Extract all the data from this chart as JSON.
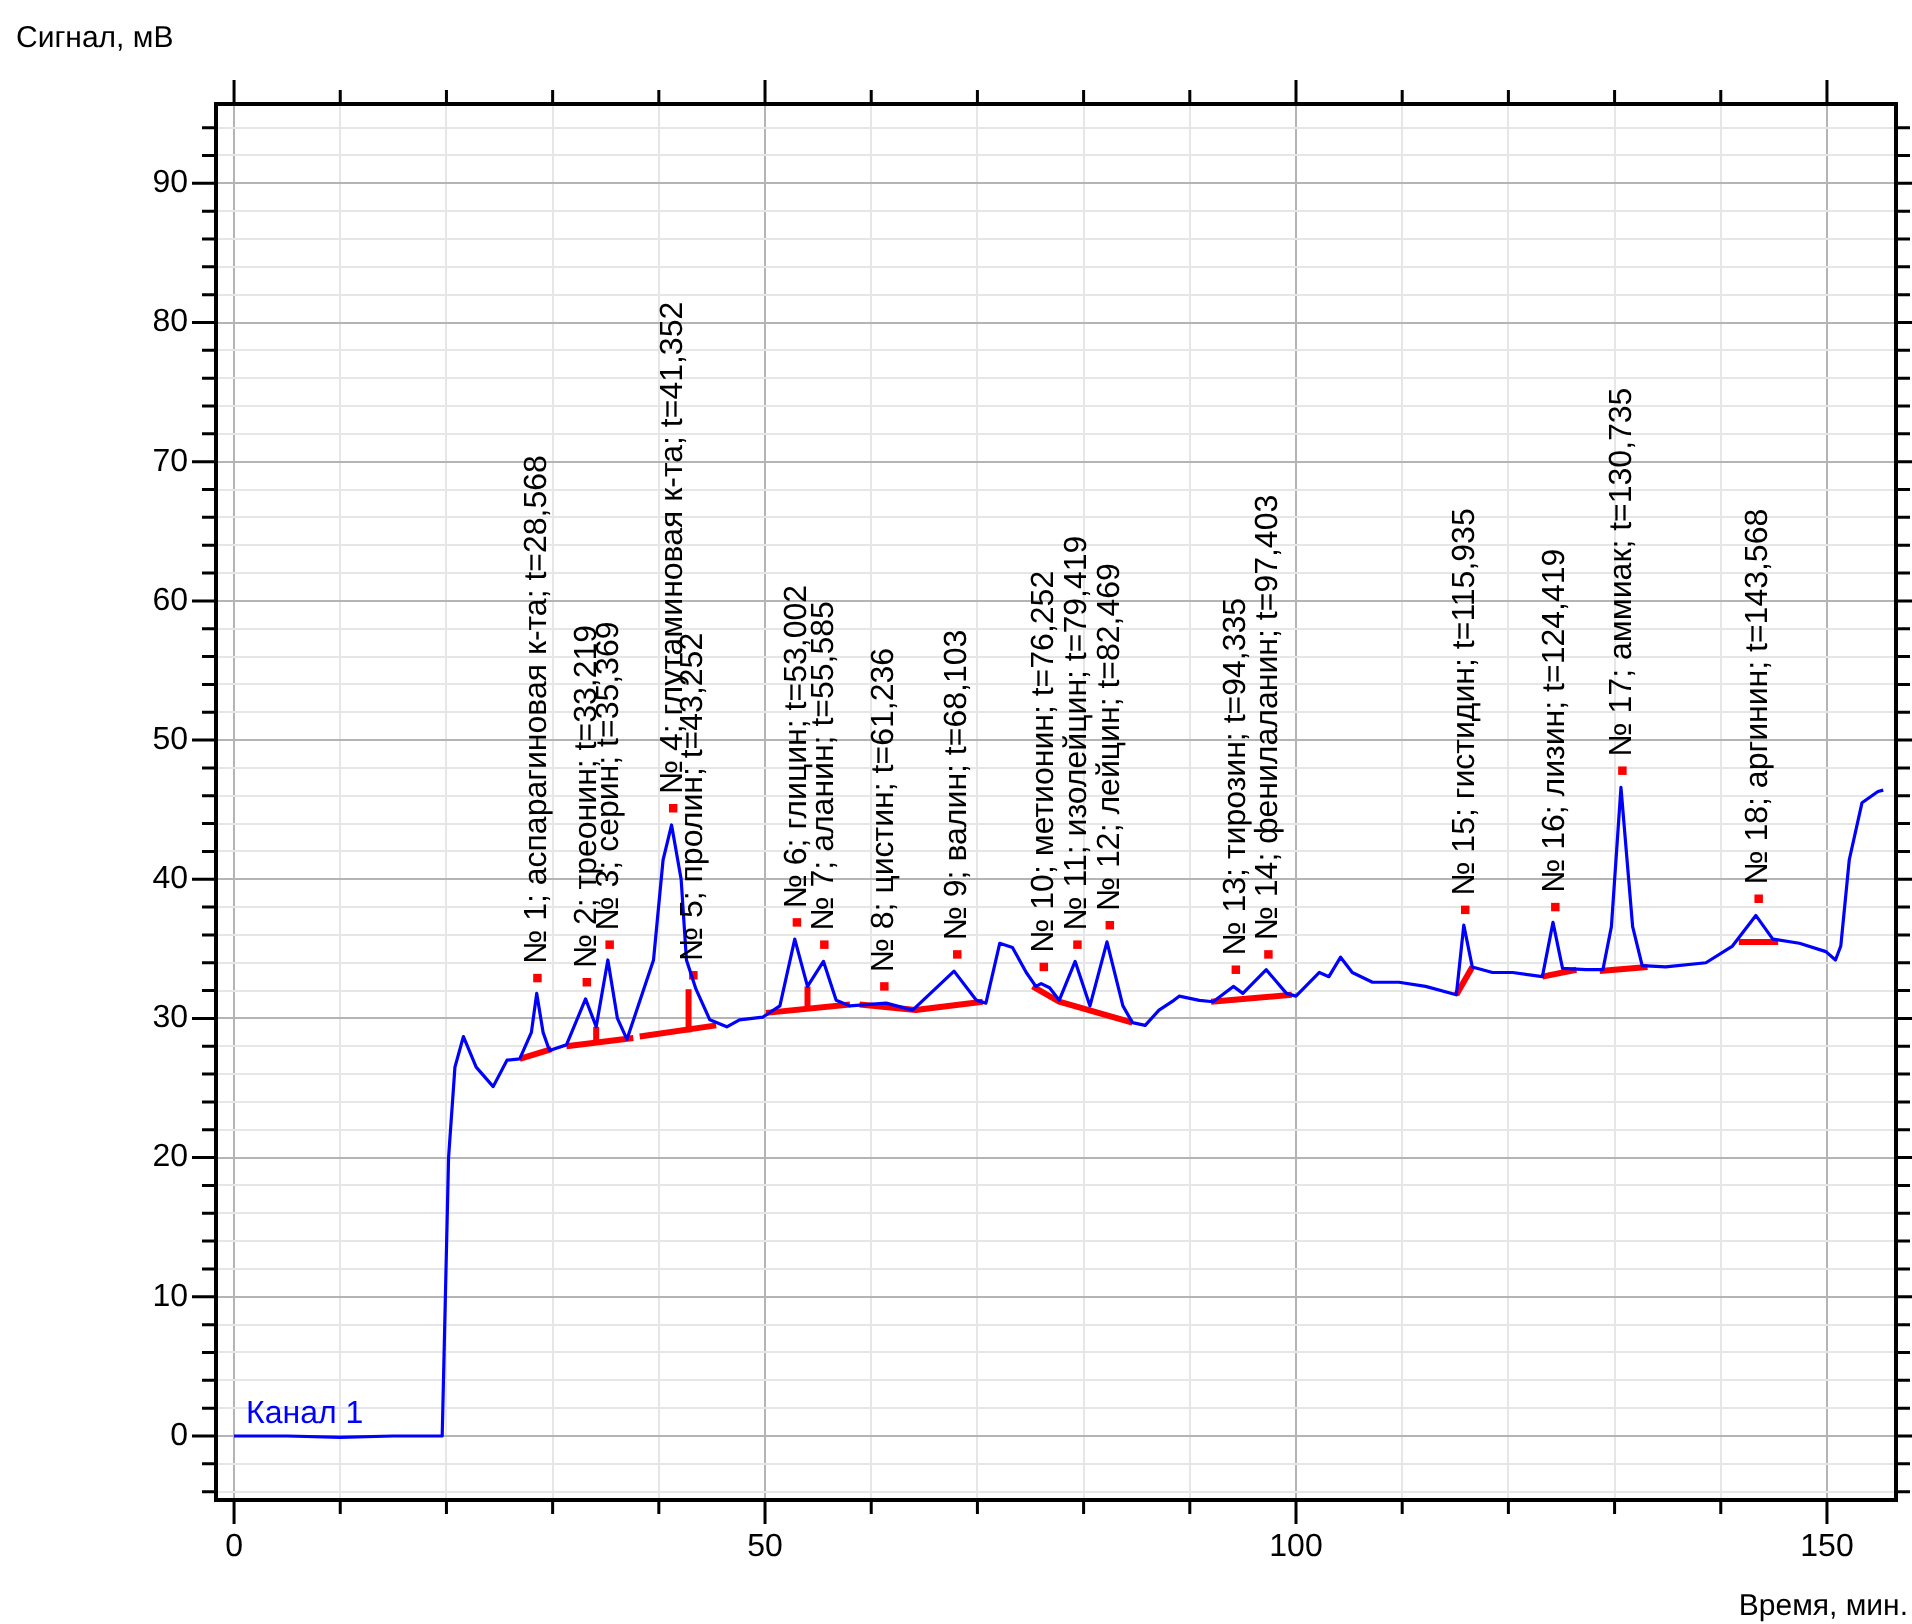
{
  "chart_data": {
    "type": "line",
    "xlabel": "Время, мин.",
    "ylabel": "Сигнал, мВ",
    "xlim": [
      -1.7,
      156.5
    ],
    "ylim": [
      -4.6,
      95.7
    ],
    "xticks": [
      0,
      {
        "value": 10,
        "label": null
      },
      {
        "value": 20,
        "label": null
      },
      {
        "value": 30,
        "label": null
      },
      {
        "value": 40,
        "label": null
      },
      50,
      {
        "value": 60,
        "label": null
      },
      {
        "value": 70,
        "label": null
      },
      {
        "value": 80,
        "label": null
      },
      {
        "value": 90,
        "label": null
      },
      100,
      {
        "value": 110,
        "label": null
      },
      {
        "value": 120,
        "label": null
      },
      {
        "value": 130,
        "label": null
      },
      {
        "value": 140,
        "label": null
      },
      150
    ],
    "yticks": [
      {
        "value": -4,
        "label": null
      },
      {
        "value": -2,
        "label": null
      },
      0,
      {
        "value": 2,
        "label": null
      },
      {
        "value": 4,
        "label": null
      },
      {
        "value": 6,
        "label": null
      },
      {
        "value": 8,
        "label": null
      },
      10,
      {
        "value": 12,
        "label": null
      },
      {
        "value": 14,
        "label": null
      },
      {
        "value": 16,
        "label": null
      },
      {
        "value": 18,
        "label": null
      },
      20,
      {
        "value": 22,
        "label": null
      },
      {
        "value": 24,
        "label": null
      },
      {
        "value": 26,
        "label": null
      },
      {
        "value": 28,
        "label": null
      },
      30,
      {
        "value": 32,
        "label": null
      },
      {
        "value": 34,
        "label": null
      },
      {
        "value": 36,
        "label": null
      },
      {
        "value": 38,
        "label": null
      },
      40,
      {
        "value": 42,
        "label": null
      },
      {
        "value": 44,
        "label": null
      },
      {
        "value": 46,
        "label": null
      },
      {
        "value": 48,
        "label": null
      },
      50,
      {
        "value": 52,
        "label": null
      },
      {
        "value": 54,
        "label": null
      },
      {
        "value": 56,
        "label": null
      },
      {
        "value": 58,
        "label": null
      },
      60,
      {
        "value": 62,
        "label": null
      },
      {
        "value": 64,
        "label": null
      },
      {
        "value": 66,
        "label": null
      },
      {
        "value": 68,
        "label": null
      },
      70,
      {
        "value": 72,
        "label": null
      },
      {
        "value": 74,
        "label": null
      },
      {
        "value": 76,
        "label": null
      },
      {
        "value": 78,
        "label": null
      },
      80,
      {
        "value": 82,
        "label": null
      },
      {
        "value": 84,
        "label": null
      },
      {
        "value": 86,
        "label": null
      },
      {
        "value": 88,
        "label": null
      },
      90,
      {
        "value": 92,
        "label": null
      },
      {
        "value": 94,
        "label": null
      }
    ],
    "grid": true,
    "legend": false,
    "series": [
      {
        "name": "Канал 1",
        "color": "#0000ff",
        "marker": "none",
        "x": [
          0,
          5,
          10,
          15,
          19.6,
          20.2,
          20.8,
          21.6,
          22.8,
          24.4,
          25.7,
          26.9,
          28.0,
          28.5,
          29.1,
          29.7,
          31.3,
          33.1,
          34.1,
          35.2,
          36.1,
          37.0,
          39.5,
          40.4,
          41.2,
          42.1,
          42.6,
          43.5,
          44.8,
          46.4,
          47.6,
          49.8,
          51.4,
          52.8,
          54.0,
          55.5,
          56.7,
          58.0,
          61.4,
          63.9,
          67.8,
          69.9,
          70.8,
          72.1,
          73.3,
          74.6,
          75.5,
          76.0,
          76.8,
          77.7,
          79.2,
          80.6,
          82.2,
          83.7,
          84.6,
          85.8,
          87.1,
          88.5,
          89.0,
          90.9,
          92.2,
          94.1,
          95.0,
          97.2,
          99.1,
          100.0,
          102.2,
          103.1,
          104.2,
          105.3,
          107.2,
          109.7,
          112.2,
          115.1,
          115.8,
          116.6,
          118.5,
          120.4,
          123.2,
          124.2,
          125.1,
          127.3,
          128.9,
          129.7,
          130.6,
          131.7,
          132.6,
          134.8,
          138.6,
          141.1,
          143.3,
          144.9,
          147.4,
          149.9,
          150.8,
          151.3,
          152.1,
          153.3,
          154.8,
          155.3
        ],
        "values": [
          0,
          0,
          -0.1,
          0,
          0,
          20,
          26.5,
          28.7,
          26.5,
          25.1,
          27.0,
          27.1,
          29.0,
          31.8,
          29.0,
          27.7,
          28.1,
          31.4,
          29.4,
          34.2,
          30.0,
          28.5,
          34.2,
          41.4,
          43.9,
          40.0,
          34.2,
          32.1,
          29.9,
          29.4,
          29.9,
          30.1,
          30.9,
          35.7,
          32.3,
          34.1,
          31.3,
          30.9,
          31.1,
          30.6,
          33.4,
          31.3,
          31.1,
          35.4,
          35.1,
          33.3,
          32.3,
          32.5,
          32.2,
          31.3,
          34.1,
          30.9,
          35.5,
          30.9,
          29.7,
          29.5,
          30.6,
          31.3,
          31.6,
          31.3,
          31.2,
          32.3,
          31.8,
          33.5,
          31.8,
          31.6,
          33.3,
          33.0,
          34.4,
          33.3,
          32.6,
          32.6,
          32.3,
          31.7,
          36.7,
          33.7,
          33.3,
          33.3,
          33.0,
          36.9,
          33.6,
          33.5,
          33.5,
          36.6,
          46.6,
          36.6,
          33.8,
          33.7,
          34.0,
          35.2,
          37.4,
          35.7,
          35.4,
          34.8,
          34.2,
          35.2,
          41.4,
          45.5,
          46.3,
          46.4
        ]
      },
      {
        "color": "#ff0000",
        "marker": "none",
        "x": [
          26.9,
          29.9
        ],
        "values": [
          27.1,
          27.8
        ]
      },
      {
        "color": "#ff0000",
        "marker": "none",
        "x": [
          31.3,
          37.6
        ],
        "values": [
          28.0,
          28.6
        ]
      },
      {
        "color": "#ff0000",
        "marker": "none",
        "x": [
          38.2,
          45.4
        ],
        "values": [
          28.7,
          29.5
        ]
      },
      {
        "color": "#ff0000",
        "marker": "none",
        "x": [
          50.1,
          58.0
        ],
        "values": [
          30.4,
          31.0
        ]
      },
      {
        "color": "#ff0000",
        "marker": "none",
        "x": [
          58.9,
          64.2,
          70.5
        ],
        "values": [
          31.0,
          30.6,
          31.2
        ]
      },
      {
        "color": "#ff0000",
        "marker": "none",
        "x": [
          75.2,
          77.7,
          84.6
        ],
        "values": [
          32.3,
          31.2,
          29.7
        ]
      },
      {
        "color": "#ff0000",
        "marker": "none",
        "x": [
          92.0,
          99.6
        ],
        "values": [
          31.2,
          31.7
        ]
      },
      {
        "color": "#ff0000",
        "marker": "none",
        "x": [
          115.1,
          116.6
        ],
        "values": [
          31.7,
          33.7
        ]
      },
      {
        "color": "#ff0000",
        "marker": "none",
        "x": [
          123.2,
          126.4
        ],
        "values": [
          33.0,
          33.5
        ]
      },
      {
        "color": "#ff0000",
        "marker": "none",
        "x": [
          128.6,
          133.1
        ],
        "values": [
          33.4,
          33.7
        ]
      },
      {
        "color": "#ff0000",
        "marker": "none",
        "x": [
          141.7,
          145.4
        ],
        "values": [
          35.5,
          35.5
        ]
      },
      {
        "color": "#ff0000",
        "marker": "none",
        "x": [
          34.1,
          34.1
        ],
        "values": [
          28.2,
          29.4
        ]
      },
      {
        "color": "#ff0000",
        "marker": "none",
        "x": [
          42.8,
          42.8
        ],
        "values": [
          29.0,
          32.1
        ]
      },
      {
        "color": "#ff0000",
        "marker": "none",
        "x": [
          54.0,
          54.0
        ],
        "values": [
          30.7,
          32.3
        ]
      },
      {
        "type": "scatter",
        "color": "#ff0000",
        "marker": "square",
        "x": [
          28.568,
          33.219,
          35.369,
          41.352,
          43.252,
          53.002,
          55.585,
          61.236,
          68.103,
          76.252,
          79.419,
          82.469,
          94.335,
          97.403,
          115.935,
          124.419,
          130.735,
          143.568
        ],
        "values": [
          32.9,
          32.6,
          35.3,
          45.1,
          33.1,
          36.9,
          35.3,
          32.3,
          34.6,
          33.7,
          35.3,
          36.7,
          33.5,
          34.6,
          37.8,
          38.0,
          47.8,
          38.6
        ]
      }
    ],
    "annotations": [
      {
        "text": "№ 1; аспарагиновая к-та; t=28,568",
        "x": 28.568,
        "y": 32.9
      },
      {
        "text": "№ 2; треонин; t=33,219",
        "x": 33.219,
        "y": 32.6
      },
      {
        "text": "№ 3; серин; t=35,369",
        "x": 35.369,
        "y": 35.3
      },
      {
        "text": "№ 4; глутаминовая к-та; t=41,352",
        "x": 41.352,
        "y": 45.1
      },
      {
        "text": "№ 5; пролин; t=43,252",
        "x": 43.252,
        "y": 33.1
      },
      {
        "text": "№ 6; глицин; t=53,002",
        "x": 53.002,
        "y": 36.9
      },
      {
        "text": "№ 7; аланин; t=55,585",
        "x": 55.585,
        "y": 35.3
      },
      {
        "text": "№ 8; цистин; t=61,236",
        "x": 61.236,
        "y": 32.3
      },
      {
        "text": "№ 9; валин; t=68,103",
        "x": 68.103,
        "y": 34.6
      },
      {
        "text": "№ 10; метионин; t=76,252",
        "x": 76.252,
        "y": 33.7
      },
      {
        "text": "№ 11; изолейцин; t=79,419",
        "x": 79.419,
        "y": 35.3
      },
      {
        "text": "№ 12; лейцин; t=82,469",
        "x": 82.469,
        "y": 36.7
      },
      {
        "text": "№ 13; тирозин; t=94,335",
        "x": 94.335,
        "y": 33.5
      },
      {
        "text": "№ 14; фенилаланин; t=97,403",
        "x": 97.403,
        "y": 34.6
      },
      {
        "text": "№ 15; гистидин; t=115,935",
        "x": 115.935,
        "y": 37.8
      },
      {
        "text": "№ 16; лизин; t=124,419",
        "x": 124.419,
        "y": 38.0
      },
      {
        "text": "№ 17; аммиак; t=130,735",
        "x": 130.735,
        "y": 47.8
      },
      {
        "text": "№ 18; аргинин; t=143,568",
        "x": 143.568,
        "y": 38.6
      }
    ]
  }
}
